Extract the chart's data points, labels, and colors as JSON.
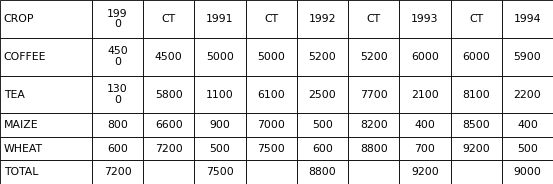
{
  "header_row": [
    "CROP",
    "199\n0",
    "CT",
    "1991",
    "CT",
    "1992",
    "CT",
    "1993",
    "CT",
    "1994"
  ],
  "data_rows": [
    [
      "COFFEE",
      "450\n0",
      "4500",
      "5000",
      "5000",
      "5200",
      "5200",
      "6000",
      "6000",
      "5900"
    ],
    [
      "TEA",
      "130\n0",
      "5800",
      "1100",
      "6100",
      "2500",
      "7700",
      "2100",
      "8100",
      "2200"
    ],
    [
      "MAIZE",
      "800",
      "6600",
      "900",
      "7000",
      "500",
      "8200",
      "400",
      "8500",
      "400"
    ],
    [
      "WHEAT",
      "600",
      "7200",
      "500",
      "7500",
      "600",
      "8800",
      "700",
      "9200",
      "500"
    ],
    [
      "TOTAL",
      "7200",
      "",
      "7500",
      "",
      "8800",
      "",
      "9200",
      "",
      "9000"
    ]
  ],
  "col_widths_rel": [
    1.4,
    0.78,
    0.78,
    0.78,
    0.78,
    0.78,
    0.78,
    0.78,
    0.78,
    0.78
  ],
  "row_heights_rel": [
    1.85,
    1.85,
    1.85,
    1.15,
    1.15,
    1.15
  ],
  "bg_color": "#ffffff",
  "text_color": "#000000",
  "font_size": 7.8,
  "line_width": 0.6
}
